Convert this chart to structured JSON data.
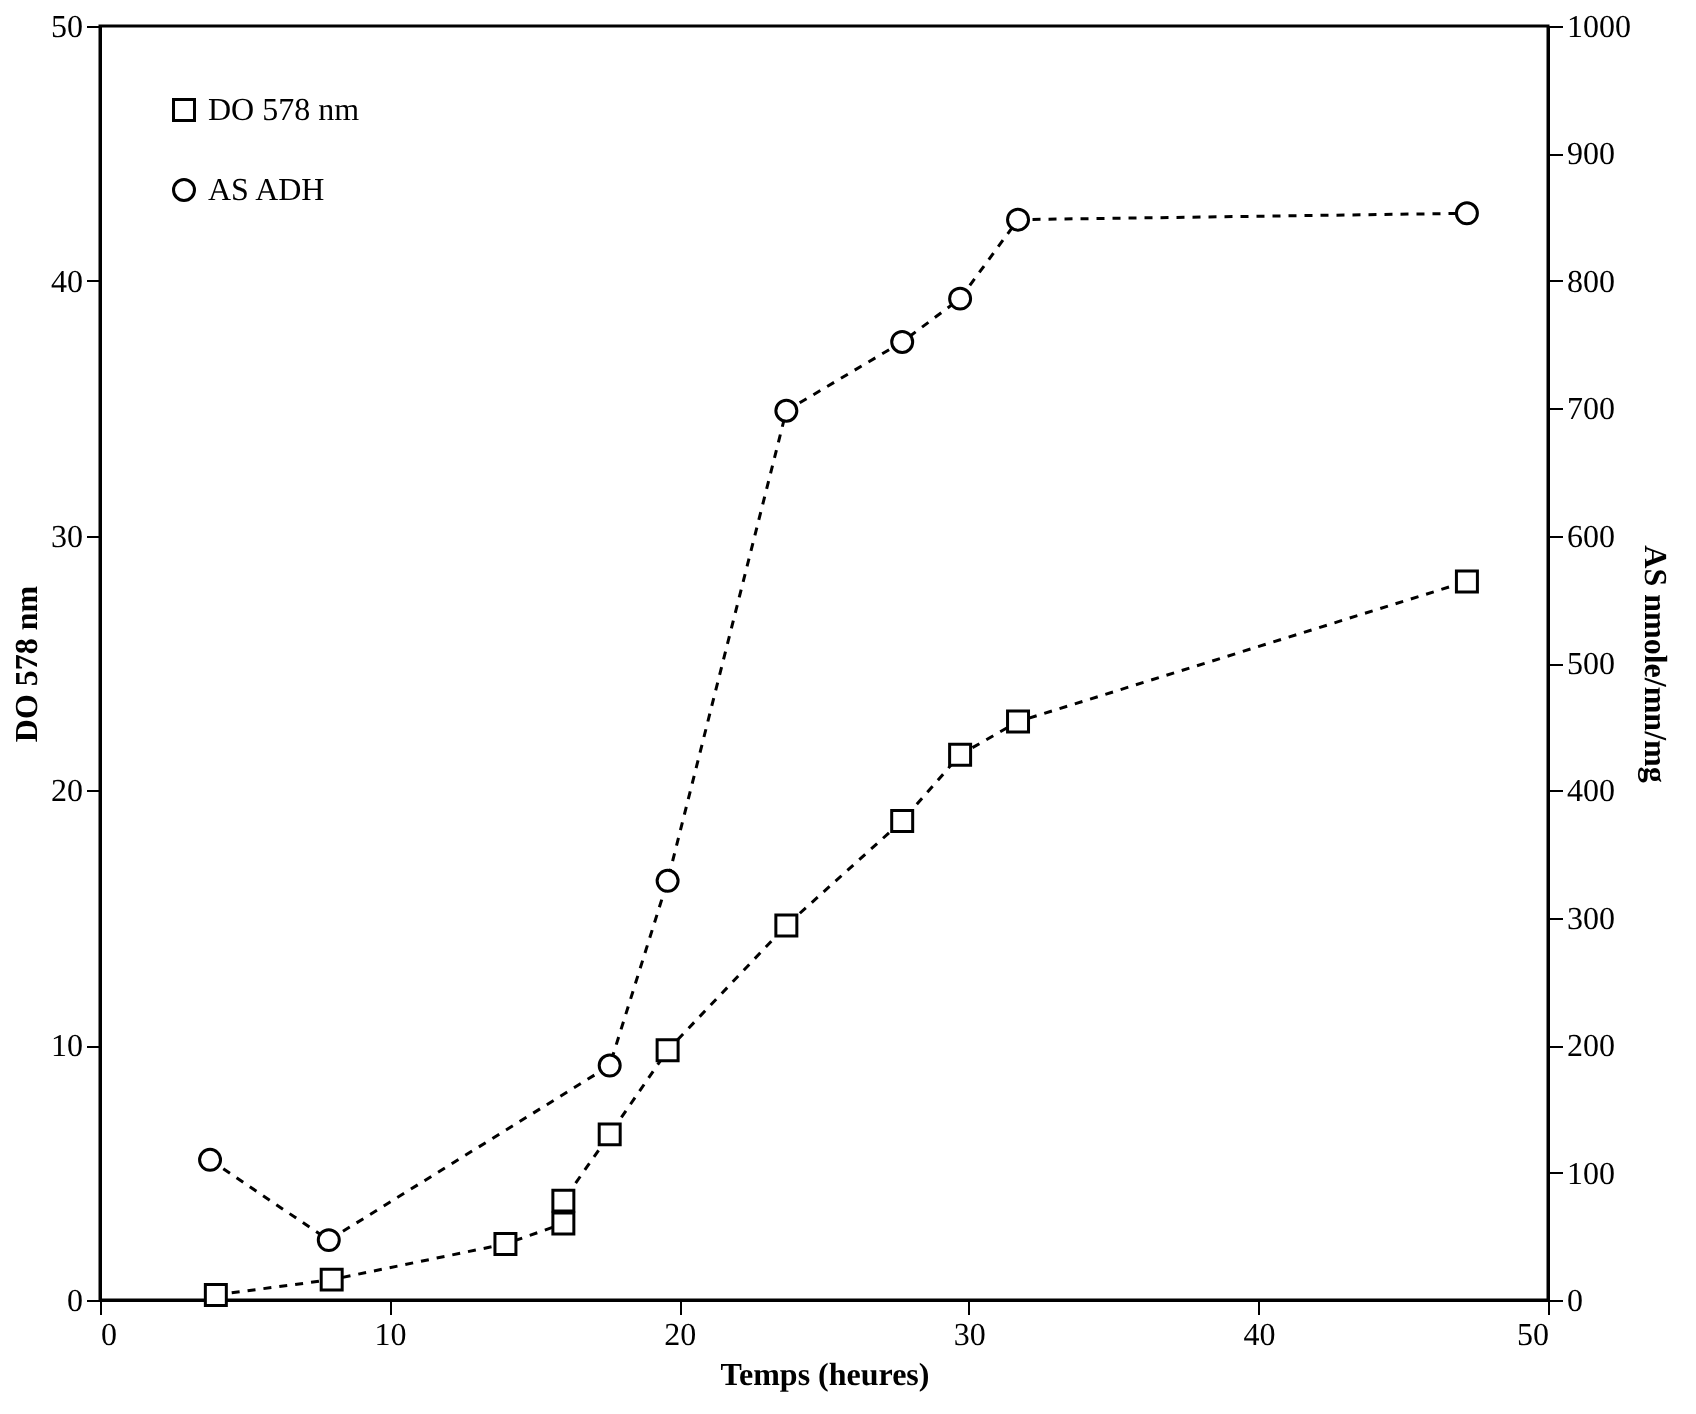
{
  "chart_data": {
    "type": "line",
    "xlabel": "Temps (heures)",
    "ylabel": "DO 578 nm",
    "y2label": "AS nmole/mn/mg",
    "xlim": [
      0,
      50
    ],
    "xticks": [
      0,
      10,
      20,
      30,
      40,
      50
    ],
    "ylim": [
      0,
      50
    ],
    "yticks": [
      0,
      10,
      20,
      30,
      40,
      50
    ],
    "y2lim": [
      0,
      1000
    ],
    "y2ticks": [
      0,
      100,
      200,
      300,
      400,
      500,
      600,
      700,
      800,
      900,
      1000
    ],
    "grid": false,
    "legend": "top left",
    "line_style": "dashed",
    "series": [
      {
        "name": "DO 578 nm",
        "color": "#000000",
        "marker": "square",
        "x": [
          4,
          8,
          14,
          16,
          16,
          17.6,
          19.6,
          23.7,
          27.7,
          29.7,
          31.7,
          47.2
        ],
        "values": [
          0.2,
          0.8,
          2.2,
          3.0,
          3.9,
          6.5,
          9.8,
          14.7,
          18.8,
          21.4,
          22.7,
          28.2
        ]
      },
      {
        "name": "AS ADH",
        "color": "#000000",
        "marker": "circle",
        "axis": "y2",
        "x": [
          3.8,
          7.9,
          17.6,
          19.6,
          23.7,
          27.7,
          29.7,
          31.7,
          47.2
        ],
        "values": [
          110,
          47,
          184,
          329,
          698,
          752,
          786,
          848,
          853
        ]
      }
    ]
  }
}
